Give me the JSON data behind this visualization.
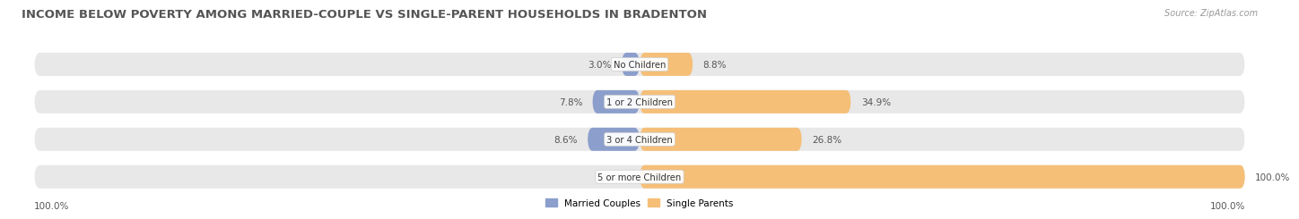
{
  "title": "INCOME BELOW POVERTY AMONG MARRIED-COUPLE VS SINGLE-PARENT HOUSEHOLDS IN BRADENTON",
  "source": "Source: ZipAtlas.com",
  "categories": [
    "No Children",
    "1 or 2 Children",
    "3 or 4 Children",
    "5 or more Children"
  ],
  "married_values": [
    3.0,
    7.8,
    8.6,
    0.0
  ],
  "single_values": [
    8.8,
    34.9,
    26.8,
    100.0
  ],
  "married_color": "#8c9fcc",
  "single_color": "#f5bf78",
  "bar_bg_color": "#e8e8e8",
  "married_label": "Married Couples",
  "single_label": "Single Parents",
  "axis_left_label": "100.0%",
  "axis_right_label": "100.0%",
  "title_fontsize": 9.5,
  "bar_height": 0.62,
  "max_val": 100.0,
  "title_color": "#555555",
  "source_color": "#999999"
}
